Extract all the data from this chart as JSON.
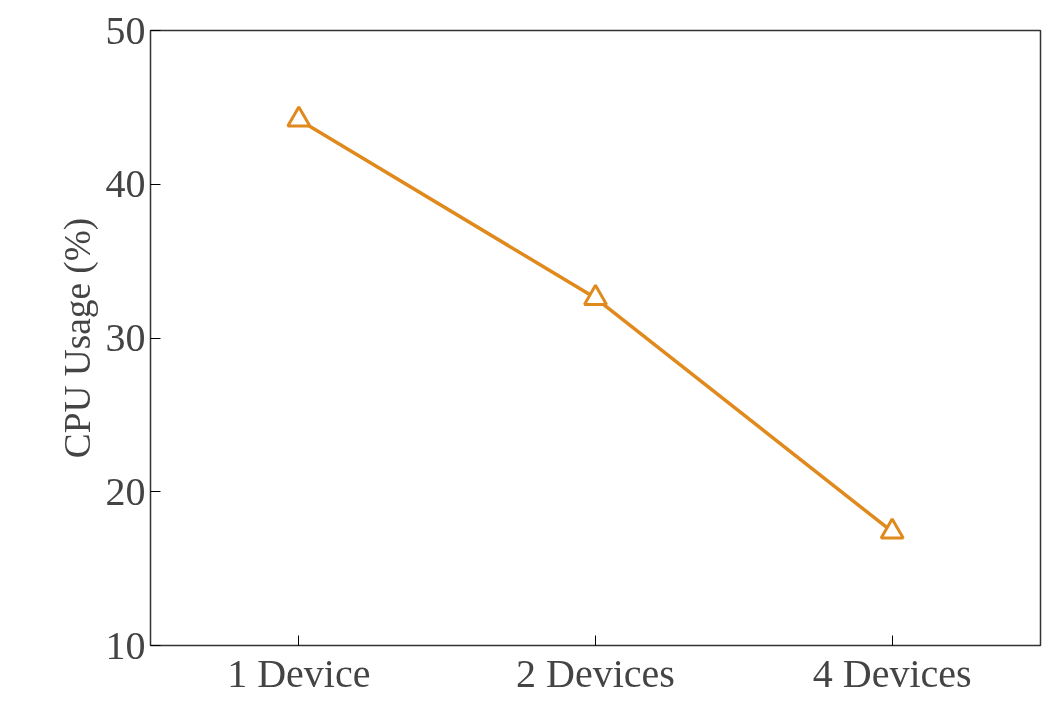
{
  "chart_data": {
    "type": "line",
    "ylabel": "CPU Usage (%)",
    "categories": [
      "1 Device",
      "2 Devices",
      "4 Devices"
    ],
    "series": [
      {
        "color": "#e08a1e",
        "values": [
          44.2,
          32.6,
          17.4
        ]
      }
    ],
    "ylim": [
      10,
      50
    ],
    "yticks": [
      10,
      20,
      30,
      40,
      50
    ],
    "marker": "triangle",
    "line_style": "solid"
  }
}
